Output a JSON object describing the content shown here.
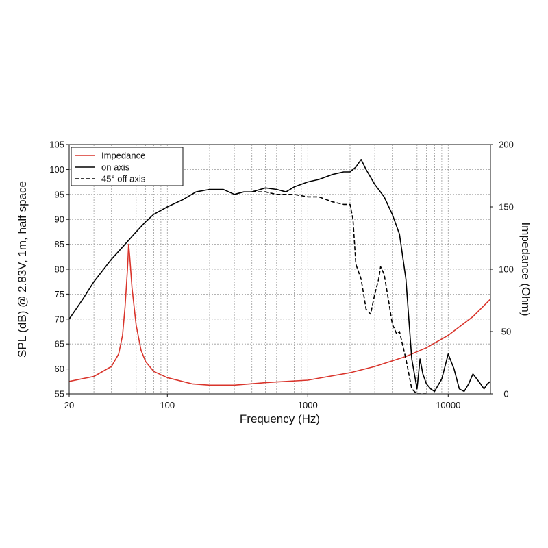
{
  "chart_data": {
    "type": "line",
    "xscale": "log",
    "xlim": [
      20,
      20000
    ],
    "ylim_left": [
      55,
      105
    ],
    "ylim_right": [
      0,
      200
    ],
    "xlabel": "Frequency (Hz)",
    "ylabel_left": "SPL (dB) @ 2.83V, 1m, half space",
    "ylabel_right": "Impedance (Ohm)",
    "x_ticks": [
      20,
      100,
      1000,
      10000
    ],
    "x_tick_labels": [
      "20",
      "100",
      "1000",
      "10000"
    ],
    "y_ticks_left": [
      55,
      60,
      65,
      70,
      75,
      80,
      85,
      90,
      95,
      100,
      105
    ],
    "y_tick_labels_left": [
      "55",
      "60",
      "65",
      "70",
      "75",
      "80",
      "85",
      "90",
      "95",
      "100",
      "105"
    ],
    "y_ticks_right": [
      0,
      50,
      100,
      150,
      200
    ],
    "y_tick_labels_right": [
      "0",
      "50",
      "100",
      "150",
      "200"
    ],
    "grid": true,
    "legend_position": "top-left",
    "series": [
      {
        "name": "Impedance",
        "axis": "right",
        "color": "#d9342b",
        "dash": "solid",
        "points": [
          [
            20,
            10
          ],
          [
            30,
            14
          ],
          [
            40,
            22
          ],
          [
            45,
            32
          ],
          [
            48,
            47
          ],
          [
            50,
            70
          ],
          [
            52,
            100
          ],
          [
            53,
            120
          ],
          [
            54,
            110
          ],
          [
            56,
            85
          ],
          [
            60,
            55
          ],
          [
            65,
            35
          ],
          [
            70,
            26
          ],
          [
            80,
            18
          ],
          [
            100,
            13
          ],
          [
            150,
            8
          ],
          [
            200,
            7
          ],
          [
            300,
            7
          ],
          [
            500,
            9
          ],
          [
            1000,
            11
          ],
          [
            2000,
            17
          ],
          [
            3000,
            22
          ],
          [
            5000,
            30
          ],
          [
            7000,
            37
          ],
          [
            10000,
            47
          ],
          [
            15000,
            62
          ],
          [
            20000,
            76
          ]
        ]
      },
      {
        "name": "on axis",
        "axis": "left",
        "color": "#000000",
        "dash": "solid",
        "points": [
          [
            20,
            70
          ],
          [
            25,
            74
          ],
          [
            30,
            77.5
          ],
          [
            40,
            82
          ],
          [
            50,
            85
          ],
          [
            60,
            87.5
          ],
          [
            70,
            89.5
          ],
          [
            80,
            91
          ],
          [
            100,
            92.5
          ],
          [
            130,
            94
          ],
          [
            160,
            95.5
          ],
          [
            200,
            96
          ],
          [
            250,
            96
          ],
          [
            300,
            95
          ],
          [
            350,
            95.5
          ],
          [
            400,
            95.5
          ],
          [
            500,
            96.3
          ],
          [
            600,
            96
          ],
          [
            700,
            95.5
          ],
          [
            800,
            96.5
          ],
          [
            1000,
            97.5
          ],
          [
            1200,
            98
          ],
          [
            1500,
            99
          ],
          [
            1800,
            99.5
          ],
          [
            2000,
            99.5
          ],
          [
            2200,
            100.5
          ],
          [
            2400,
            102
          ],
          [
            2600,
            100
          ],
          [
            3000,
            97
          ],
          [
            3500,
            94.5
          ],
          [
            4000,
            91
          ],
          [
            4500,
            87
          ],
          [
            5000,
            78
          ],
          [
            5500,
            62
          ],
          [
            6000,
            56
          ],
          [
            6300,
            62
          ],
          [
            6600,
            59
          ],
          [
            7000,
            57
          ],
          [
            7500,
            56
          ],
          [
            8000,
            55.5
          ],
          [
            9000,
            58
          ],
          [
            10000,
            63
          ],
          [
            11000,
            60
          ],
          [
            12000,
            56
          ],
          [
            13000,
            55.5
          ],
          [
            14000,
            57
          ],
          [
            15000,
            59
          ],
          [
            16000,
            58
          ],
          [
            17000,
            57
          ],
          [
            18000,
            56
          ],
          [
            19000,
            57
          ],
          [
            20000,
            57.5
          ]
        ]
      },
      {
        "name": "45° off axis",
        "axis": "left",
        "color": "#000000",
        "dash": "dashed",
        "points": [
          [
            400,
            95.5
          ],
          [
            500,
            95.5
          ],
          [
            600,
            95
          ],
          [
            800,
            95
          ],
          [
            1000,
            94.5
          ],
          [
            1200,
            94.5
          ],
          [
            1500,
            93.5
          ],
          [
            1800,
            93
          ],
          [
            2000,
            93
          ],
          [
            2100,
            90
          ],
          [
            2200,
            81
          ],
          [
            2400,
            78
          ],
          [
            2600,
            72
          ],
          [
            2800,
            71
          ],
          [
            3000,
            75
          ],
          [
            3200,
            78
          ],
          [
            3300,
            80.5
          ],
          [
            3500,
            79
          ],
          [
            3800,
            73
          ],
          [
            4000,
            69
          ],
          [
            4300,
            67
          ],
          [
            4500,
            67.5
          ],
          [
            5000,
            62
          ],
          [
            5500,
            56
          ],
          [
            6000,
            55
          ],
          [
            7000,
            55
          ]
        ]
      }
    ]
  }
}
